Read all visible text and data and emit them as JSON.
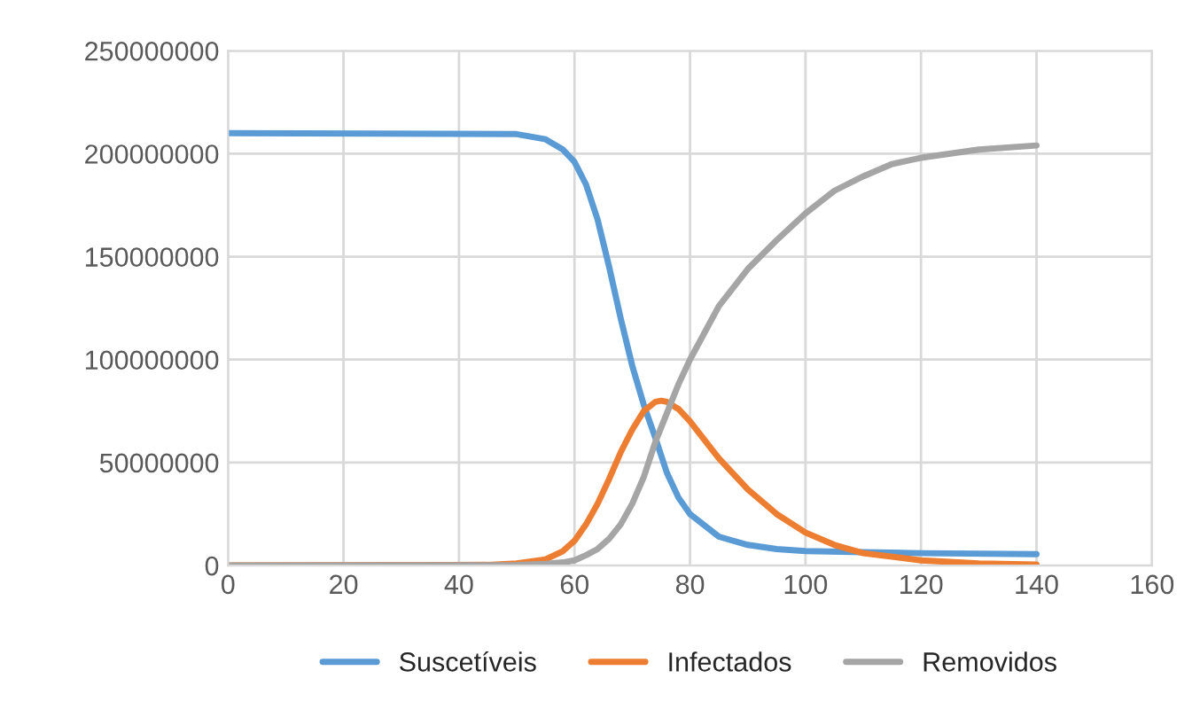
{
  "chart_data": {
    "type": "line",
    "xlim": [
      0,
      160
    ],
    "xticks": [
      0,
      20,
      40,
      60,
      80,
      100,
      120,
      140,
      160
    ],
    "ylim": [
      0,
      250000000
    ],
    "yticks": [
      0,
      50000000,
      100000000,
      150000000,
      200000000,
      250000000
    ],
    "grid": true,
    "legend": "bottom",
    "marker": "none",
    "line_style": "solid",
    "series": [
      {
        "name": "Suscetíveis",
        "color": "#5b9bd5",
        "x": [
          0,
          50,
          55,
          58,
          60,
          62,
          64,
          66,
          68,
          70,
          72,
          74,
          76,
          78,
          80,
          85,
          90,
          95,
          100,
          110,
          120,
          140
        ],
        "values": [
          210000000,
          209500000,
          207000000,
          202000000,
          196000000,
          185000000,
          168000000,
          145000000,
          120000000,
          97000000,
          78000000,
          62000000,
          45000000,
          33000000,
          25000000,
          14000000,
          10000000,
          8000000,
          7000000,
          6500000,
          6000000,
          5500000
        ]
      },
      {
        "name": "Infectados",
        "color": "#ed7d31",
        "x": [
          0,
          45,
          50,
          55,
          58,
          60,
          62,
          64,
          66,
          68,
          70,
          72,
          74,
          75,
          76,
          78,
          80,
          85,
          90,
          95,
          100,
          105,
          110,
          120,
          130,
          140
        ],
        "values": [
          0,
          300000,
          1000000,
          3000000,
          7000000,
          12000000,
          20000000,
          30000000,
          42000000,
          55000000,
          66000000,
          75000000,
          79500000,
          80000000,
          79500000,
          76000000,
          70000000,
          52000000,
          37000000,
          25000000,
          16000000,
          10000000,
          6000000,
          2500000,
          1000000,
          500000
        ]
      },
      {
        "name": "Removidos",
        "color": "#a5a5a5",
        "x": [
          0,
          50,
          55,
          58,
          60,
          62,
          64,
          66,
          68,
          70,
          72,
          74,
          76,
          78,
          80,
          85,
          90,
          95,
          100,
          105,
          110,
          115,
          120,
          130,
          140
        ],
        "values": [
          0,
          200000,
          800000,
          1500000,
          2500000,
          5000000,
          8000000,
          13000000,
          20000000,
          30000000,
          43000000,
          60000000,
          74000000,
          88000000,
          100000000,
          126000000,
          144000000,
          158000000,
          171000000,
          182000000,
          189000000,
          195000000,
          198000000,
          202000000,
          204000000
        ]
      }
    ]
  }
}
